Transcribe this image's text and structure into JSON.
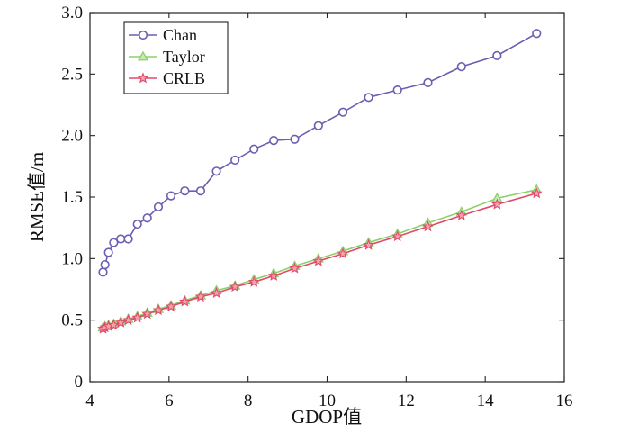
{
  "chart_data": {
    "type": "line",
    "xlabel": "GDOP值",
    "ylabel": "RMSE值/m",
    "xlim": [
      4,
      16
    ],
    "ylim": [
      0,
      3.0
    ],
    "xticks": [
      "4",
      "6",
      "8",
      "10",
      "12",
      "14",
      "16"
    ],
    "yticks": [
      "0",
      "0.5",
      "1.0",
      "1.5",
      "2.0",
      "2.5",
      "3.0"
    ],
    "xtick_values": [
      4,
      6,
      8,
      10,
      12,
      14,
      16
    ],
    "ytick_values": [
      0,
      0.5,
      1.0,
      1.5,
      2.0,
      2.5,
      3.0
    ],
    "grid": false,
    "legend_position": "top-left",
    "series": [
      {
        "name": "Chan",
        "color": "#6a5fb0",
        "marker": "circle",
        "x": [
          4.33,
          4.38,
          4.47,
          4.6,
          4.78,
          4.97,
          5.2,
          5.45,
          5.73,
          6.05,
          6.4,
          6.8,
          7.2,
          7.67,
          8.15,
          8.65,
          9.18,
          9.78,
          10.4,
          11.05,
          11.78,
          12.55,
          13.4,
          14.3,
          15.3
        ],
        "y": [
          0.89,
          0.95,
          1.05,
          1.13,
          1.16,
          1.16,
          1.28,
          1.33,
          1.42,
          1.51,
          1.55,
          1.55,
          1.71,
          1.8,
          1.89,
          1.96,
          1.97,
          2.08,
          2.19,
          2.31,
          2.37,
          2.43,
          2.56,
          2.65,
          2.83
        ]
      },
      {
        "name": "Taylor",
        "color": "#8cd06a",
        "marker": "triangle",
        "x": [
          4.33,
          4.38,
          4.47,
          4.6,
          4.78,
          4.97,
          5.2,
          5.45,
          5.73,
          6.05,
          6.4,
          6.8,
          7.2,
          7.67,
          8.15,
          8.65,
          9.18,
          9.78,
          10.4,
          11.05,
          11.78,
          12.55,
          13.4,
          14.3,
          15.3
        ],
        "y": [
          0.44,
          0.45,
          0.46,
          0.47,
          0.49,
          0.51,
          0.53,
          0.56,
          0.59,
          0.62,
          0.66,
          0.7,
          0.74,
          0.78,
          0.83,
          0.88,
          0.94,
          1.0,
          1.06,
          1.13,
          1.2,
          1.29,
          1.38,
          1.49,
          1.56
        ]
      },
      {
        "name": "CRLB",
        "color": "#e04a6a",
        "marker": "star",
        "x": [
          4.33,
          4.38,
          4.47,
          4.6,
          4.78,
          4.97,
          5.2,
          5.45,
          5.73,
          6.05,
          6.4,
          6.8,
          7.2,
          7.67,
          8.15,
          8.65,
          9.18,
          9.78,
          10.4,
          11.05,
          11.78,
          12.55,
          13.4,
          14.3,
          15.3
        ],
        "y": [
          0.43,
          0.44,
          0.45,
          0.46,
          0.48,
          0.5,
          0.52,
          0.55,
          0.58,
          0.61,
          0.65,
          0.69,
          0.72,
          0.77,
          0.81,
          0.86,
          0.92,
          0.98,
          1.04,
          1.11,
          1.18,
          1.26,
          1.35,
          1.44,
          1.53
        ]
      }
    ]
  }
}
